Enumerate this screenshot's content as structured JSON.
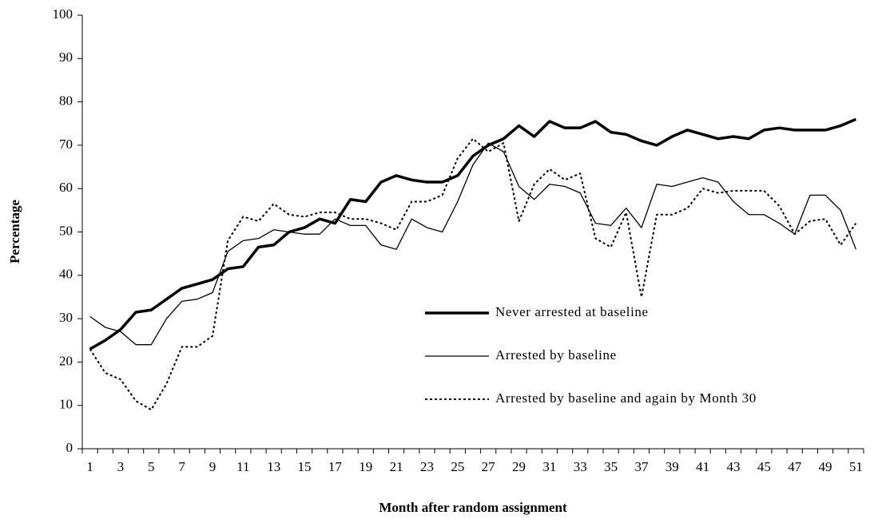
{
  "chart_data": {
    "type": "line",
    "x_label": "Month after random assignment",
    "y_label": "Percentage",
    "categories": [
      1,
      null,
      3,
      null,
      5,
      null,
      7,
      null,
      9,
      null,
      11,
      null,
      13,
      null,
      15,
      null,
      17,
      null,
      19,
      null,
      21,
      null,
      23,
      null,
      25,
      null,
      27,
      null,
      29,
      null,
      31,
      null,
      33,
      null,
      35,
      null,
      37,
      null,
      39,
      null,
      41,
      null,
      43,
      null,
      45,
      null,
      47,
      null,
      49,
      null,
      51
    ],
    "series": [
      {
        "name": "Never arrested at baseline",
        "color": "#000000",
        "values": [
          23,
          25,
          27.5,
          31.5,
          32,
          34.5,
          37,
          38,
          39,
          41.5,
          42,
          46.5,
          47,
          50,
          51,
          53,
          52,
          57.5,
          57,
          61.5,
          63,
          62,
          61.5,
          61.5,
          63,
          67.5,
          70,
          71.5,
          74.5,
          72,
          75.5,
          74,
          74,
          75.5,
          73,
          72.5,
          71,
          70,
          72,
          73.5,
          72.5,
          71.5,
          72,
          71.5,
          73.5,
          74,
          73.5,
          73.5,
          73.5,
          74.5,
          76
        ]
      },
      {
        "name": "Arrested by baseline",
        "color": "#000000",
        "values": [
          30.5,
          28,
          27,
          24,
          24,
          30,
          34,
          34.5,
          36,
          45.5,
          48,
          48.5,
          50.5,
          50,
          49.5,
          49.5,
          53,
          51.5,
          51.5,
          47,
          46,
          53,
          51,
          50,
          57,
          65.5,
          70.5,
          68.5,
          60.5,
          57.5,
          61,
          60.5,
          59,
          52,
          51.5,
          55.5,
          51,
          61,
          60.5,
          61.5,
          62.5,
          61.5,
          57,
          54,
          54,
          52,
          49.5,
          58.5,
          58.5,
          55,
          46
        ]
      },
      {
        "name": "Arrested by baseline and again by Month 30",
        "color": "#000000",
        "values": [
          23,
          17.5,
          16,
          11,
          9,
          15,
          23.5,
          23.5,
          26,
          48,
          53.5,
          52.5,
          56.5,
          54,
          53.5,
          54.5,
          54.5,
          53,
          53,
          52,
          50.5,
          57,
          57,
          58.5,
          67,
          71.5,
          68.5,
          70.5,
          52.5,
          61,
          64.5,
          62,
          63.5,
          48.5,
          46.5,
          54.5,
          35,
          54,
          54,
          55.5,
          60,
          59,
          59.5,
          59.5,
          59.5,
          56,
          49.5,
          52.5,
          53,
          47,
          52
        ]
      }
    ],
    "ylim": [
      0,
      100
    ],
    "yticks": [
      0,
      10,
      20,
      30,
      40,
      50,
      60,
      70,
      80,
      90,
      100
    ],
    "grid": false
  }
}
